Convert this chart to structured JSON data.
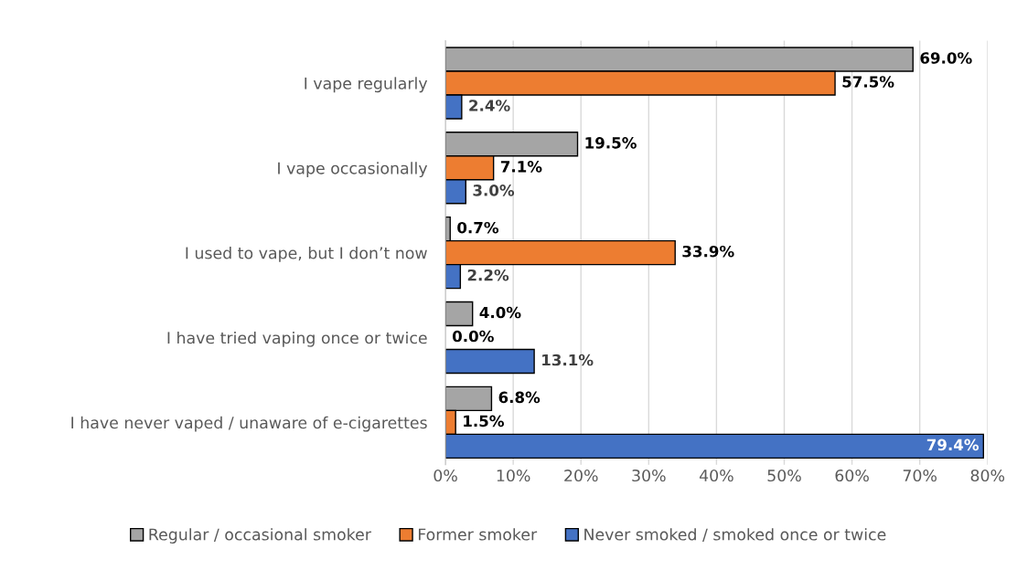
{
  "chart_data": {
    "type": "bar",
    "orientation": "horizontal",
    "categories": [
      "I vape regularly",
      "I vape occasionally",
      "I used to vape, but I don’t now",
      "I have tried vaping once or twice",
      "I have never vaped / unaware of e-cigarettes"
    ],
    "series": [
      {
        "name": "Regular / occasional smoker",
        "color": "#a5a5a5",
        "values": [
          69.0,
          19.5,
          0.7,
          4.0,
          6.8
        ],
        "value_labels": [
          "69.0%",
          "19.5%",
          "0.7%",
          "4.0%",
          "6.8%"
        ]
      },
      {
        "name": "Former smoker",
        "color": "#ed7d31",
        "values": [
          57.5,
          7.1,
          33.9,
          0.0,
          1.5
        ],
        "value_labels": [
          "57.5%",
          "7.1%",
          "33.9%",
          "0.0%",
          "1.5%"
        ]
      },
      {
        "name": "Never smoked / smoked once or twice",
        "color": "#4472c4",
        "values": [
          2.4,
          3.0,
          2.2,
          13.1,
          79.4
        ],
        "value_labels": [
          "2.4%",
          "3.0%",
          "2.2%",
          "13.1%",
          "79.4%"
        ]
      }
    ],
    "xlim": [
      0,
      80
    ],
    "xticks": [
      {
        "value": 0,
        "label": "0%"
      },
      {
        "value": 10,
        "label": "10%"
      },
      {
        "value": 20,
        "label": "20%"
      },
      {
        "value": 30,
        "label": "30%"
      },
      {
        "value": 40,
        "label": "40%"
      },
      {
        "value": 50,
        "label": "50%"
      },
      {
        "value": 60,
        "label": "60%"
      },
      {
        "value": 70,
        "label": "70%"
      },
      {
        "value": 80,
        "label": "80%"
      }
    ],
    "grid": "x",
    "legend": "bottom"
  }
}
